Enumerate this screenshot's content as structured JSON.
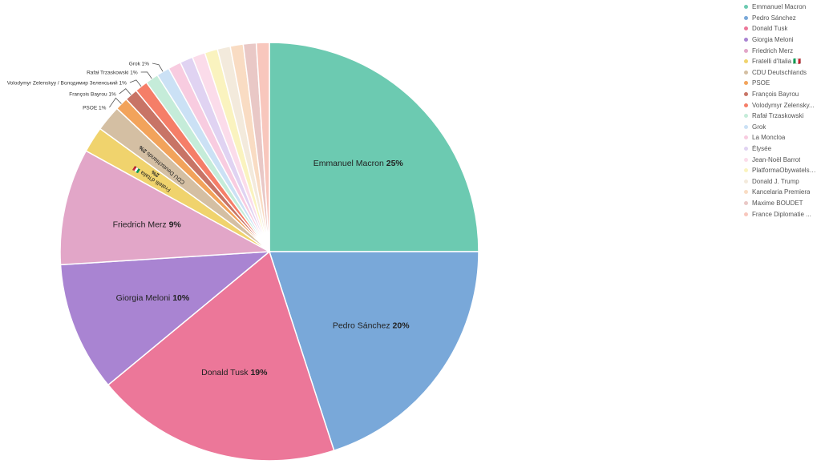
{
  "chart_data": {
    "type": "pie",
    "series": [
      {
        "name": "Emmanuel Macron",
        "label": "Emmanuel Macron",
        "value": 25,
        "color": "#6ccab1"
      },
      {
        "name": "Pedro Sánchez",
        "label": "Pedro Sánchez",
        "value": 20,
        "color": "#79a8d9"
      },
      {
        "name": "Donald Tusk",
        "label": "Donald Tusk",
        "value": 19,
        "color": "#ec7799"
      },
      {
        "name": "Giorgia Meloni",
        "label": "Giorgia Meloni",
        "value": 10,
        "color": "#a984d2"
      },
      {
        "name": "Friedrich Merz",
        "label": "Friedrich Merz",
        "value": 9,
        "color": "#e2a6c8"
      },
      {
        "name": "Fratelli d'Italia 🇮🇹",
        "label": "Fratelli d'Italia 🇮🇹",
        "value": 2,
        "color": "#f0d36d"
      },
      {
        "name": "CDU Deutschlands",
        "label": "CDU Deutschlands",
        "value": 2,
        "color": "#d4bfa3"
      },
      {
        "name": "PSOE",
        "label": "PSOE",
        "value": 1,
        "color": "#f2a35b"
      },
      {
        "name": "François Bayrou",
        "label": "François Bayrou",
        "value": 1,
        "color": "#c87466"
      },
      {
        "name": "Volodymyr Zelensky...",
        "label": "Volodymyr Zelenskyy / Володимир Зеленський",
        "value": 1,
        "color": "#f57e68"
      },
      {
        "name": "Rafał Trzaskowski",
        "label": "Rafał Trzaskowski",
        "value": 1,
        "color": "#c5ecd9"
      },
      {
        "name": "Grok",
        "label": "Grok",
        "value": 1,
        "color": "#cbe1f5"
      },
      {
        "name": "La Moncloa",
        "label": "La Moncloa",
        "value": 1,
        "color": "#f8cce0"
      },
      {
        "name": "Élysée",
        "label": "Élysée",
        "value": 1,
        "color": "#e0d3f2"
      },
      {
        "name": "Jean-Noël Barrot",
        "label": "Jean-Noël Barrot",
        "value": 1,
        "color": "#fbdcea"
      },
      {
        "name": "PlatformaObywatelska",
        "label": "PlatformaObywatelska",
        "value": 1,
        "color": "#faf3bf"
      },
      {
        "name": "Donald J. Trump",
        "label": "Donald J. Trump",
        "value": 1,
        "color": "#f3eadc"
      },
      {
        "name": "Kancelaria Premiera",
        "label": "Kancelaria Premiera",
        "value": 1,
        "color": "#f9dcc3"
      },
      {
        "name": "Maxime BOUDET",
        "label": "Maxime BOUDET",
        "value": 1,
        "color": "#e9c8c6"
      },
      {
        "name": "France Diplomatie ...",
        "label": "France Diplomatie",
        "value": 1,
        "color": "#f8c7bd"
      }
    ],
    "inside_labels": [
      {
        "text": "Emmanuel Macron",
        "pct": "25%"
      },
      {
        "text": "Pedro Sánchez",
        "pct": "20%"
      },
      {
        "text": "Donald Tusk",
        "pct": "19%"
      },
      {
        "text": "Giorgia Meloni",
        "pct": "10%"
      },
      {
        "text": "Friedrich Merz",
        "pct": "9%"
      },
      {
        "text": "Fratelli d'Italia 🇮🇹",
        "pct": "2%"
      },
      {
        "text": "CDU Deutschlands",
        "pct": "2%"
      }
    ],
    "outside_labels": [
      {
        "text": "PSOE",
        "pct": "1%"
      },
      {
        "text": "François Bayrou",
        "pct": "1%"
      },
      {
        "text": "Volodymyr Zelenskyy / Володимир Зеленський",
        "pct": "1%"
      },
      {
        "text": "Rafał Trzaskowski",
        "pct": "1%"
      },
      {
        "text": "Grok",
        "pct": "1%"
      }
    ],
    "legend_position": "top-right"
  }
}
